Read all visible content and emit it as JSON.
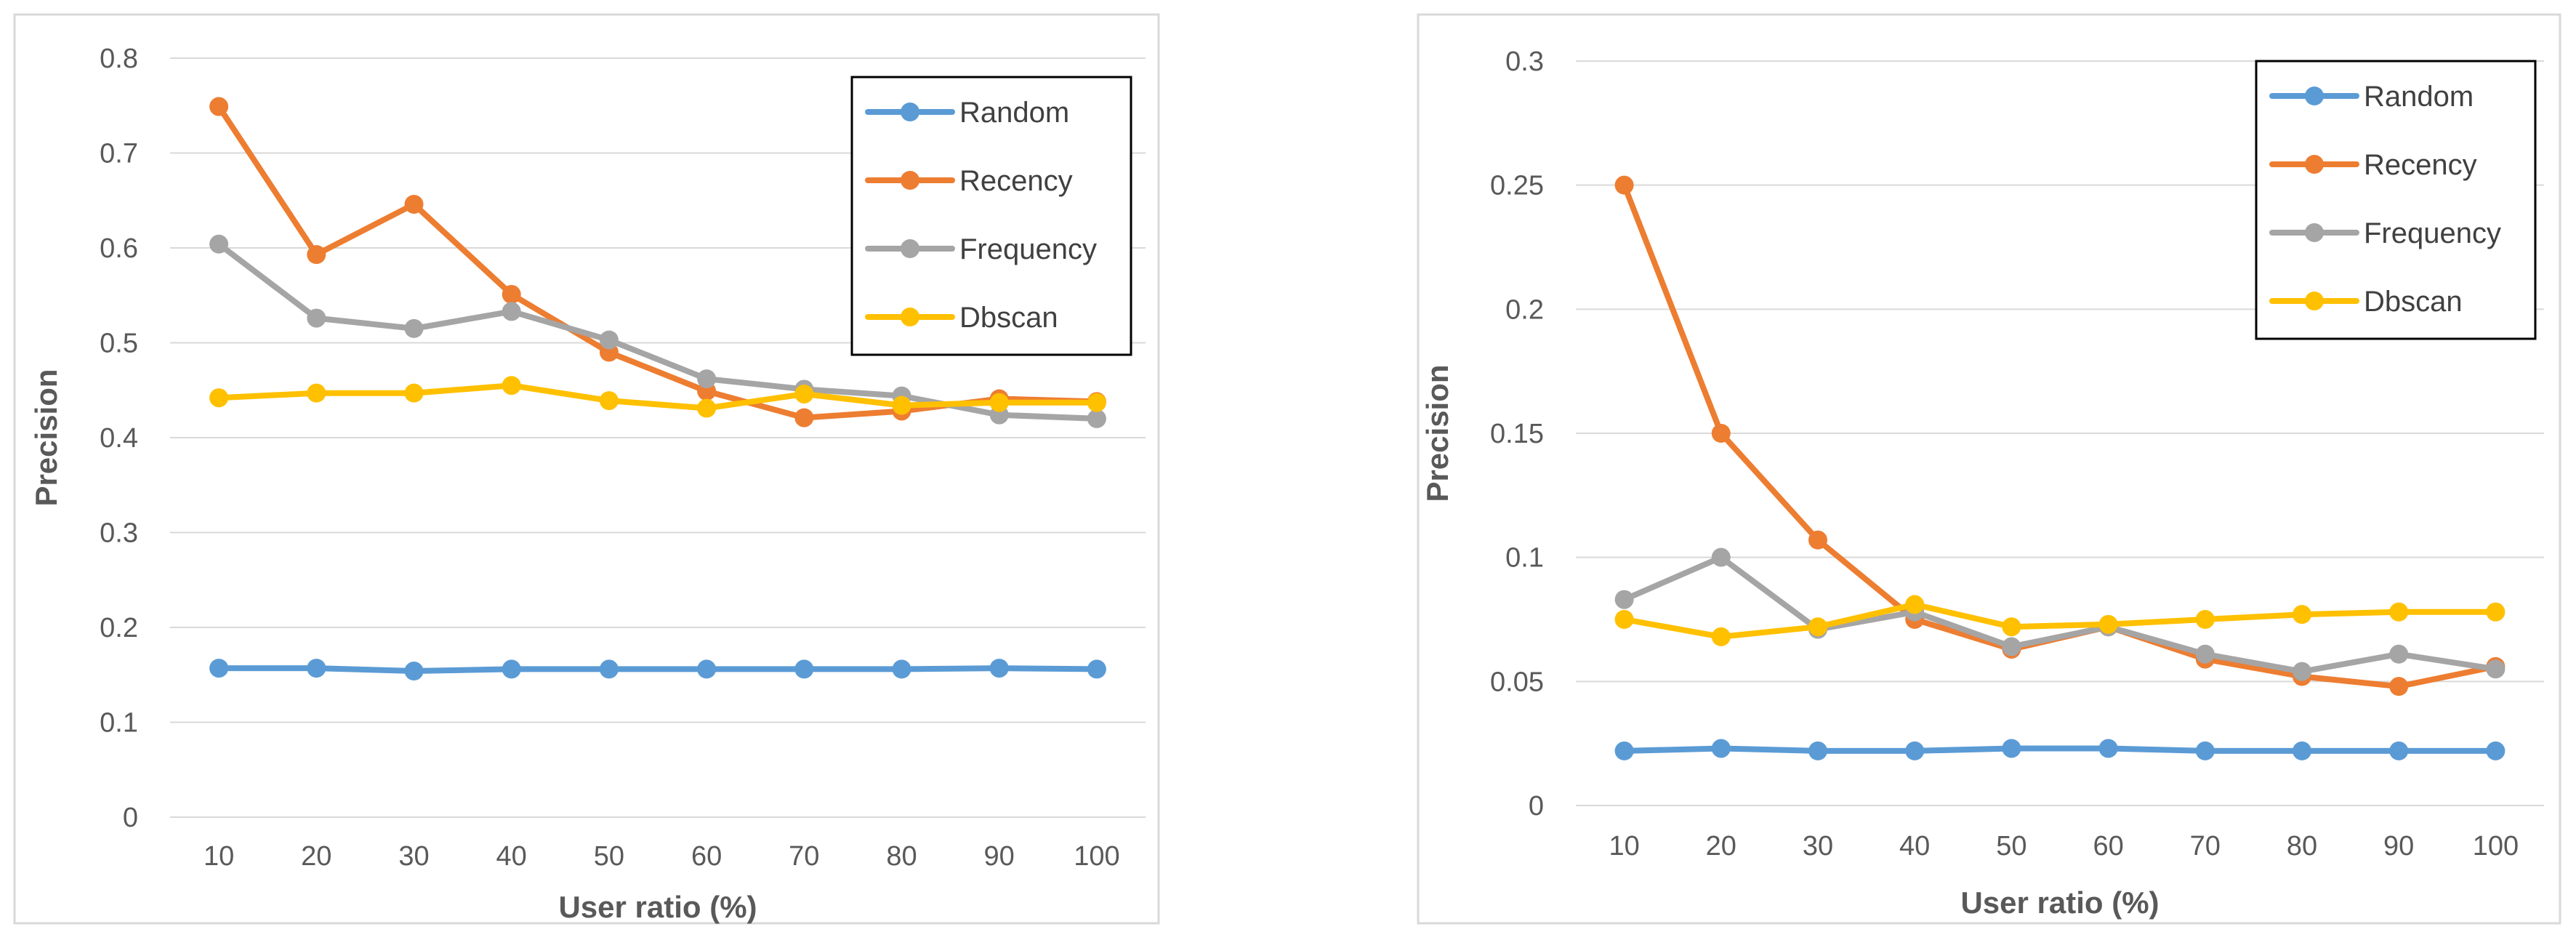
{
  "chart_data": [
    {
      "type": "line",
      "title": "",
      "xlabel": "User ratio (%)",
      "ylabel": "Precision",
      "categories": [
        "10",
        "20",
        "30",
        "40",
        "50",
        "60",
        "70",
        "80",
        "90",
        "100"
      ],
      "yticks": [
        "0",
        "0.1",
        "0.2",
        "0.3",
        "0.4",
        "0.5",
        "0.6",
        "0.7",
        "0.8"
      ],
      "ylim": [
        0,
        0.8
      ],
      "grid": true,
      "legend_position": "top-right",
      "series": [
        {
          "name": "Random",
          "color": "#5B9BD5",
          "values": [
            0.157,
            0.157,
            0.154,
            0.156,
            0.156,
            0.156,
            0.156,
            0.156,
            0.157,
            0.156
          ]
        },
        {
          "name": "Recency",
          "color": "#ED7D31",
          "values": [
            0.749,
            0.593,
            0.646,
            0.551,
            0.49,
            0.449,
            0.421,
            0.428,
            0.441,
            0.438
          ]
        },
        {
          "name": "Frequency",
          "color": "#A5A5A5",
          "values": [
            0.604,
            0.526,
            0.515,
            0.533,
            0.503,
            0.462,
            0.451,
            0.444,
            0.424,
            0.42
          ]
        },
        {
          "name": "Dbscan",
          "color": "#FFC000",
          "values": [
            0.442,
            0.447,
            0.447,
            0.455,
            0.439,
            0.431,
            0.446,
            0.434,
            0.437,
            0.437
          ]
        }
      ]
    },
    {
      "type": "line",
      "title": "",
      "xlabel": "User ratio (%)",
      "ylabel": "Precision",
      "categories": [
        "10",
        "20",
        "30",
        "40",
        "50",
        "60",
        "70",
        "80",
        "90",
        "100"
      ],
      "yticks": [
        "0",
        "0.05",
        "0.1",
        "0.15",
        "0.2",
        "0.25",
        "0.3"
      ],
      "ylim": [
        0,
        0.3
      ],
      "grid": true,
      "legend_position": "top-right",
      "series": [
        {
          "name": "Random",
          "color": "#5B9BD5",
          "values": [
            0.022,
            0.023,
            0.022,
            0.022,
            0.023,
            0.023,
            0.022,
            0.022,
            0.022,
            0.022
          ]
        },
        {
          "name": "Recency",
          "color": "#ED7D31",
          "values": [
            0.25,
            0.15,
            0.107,
            0.075,
            0.063,
            0.072,
            0.059,
            0.052,
            0.048,
            0.056
          ]
        },
        {
          "name": "Frequency",
          "color": "#A5A5A5",
          "values": [
            0.083,
            0.1,
            0.071,
            0.078,
            0.064,
            0.072,
            0.061,
            0.054,
            0.061,
            0.055
          ]
        },
        {
          "name": "Dbscan",
          "color": "#FFC000",
          "values": [
            0.075,
            0.068,
            0.072,
            0.081,
            0.072,
            0.073,
            0.075,
            0.077,
            0.078,
            0.078
          ]
        }
      ]
    }
  ]
}
